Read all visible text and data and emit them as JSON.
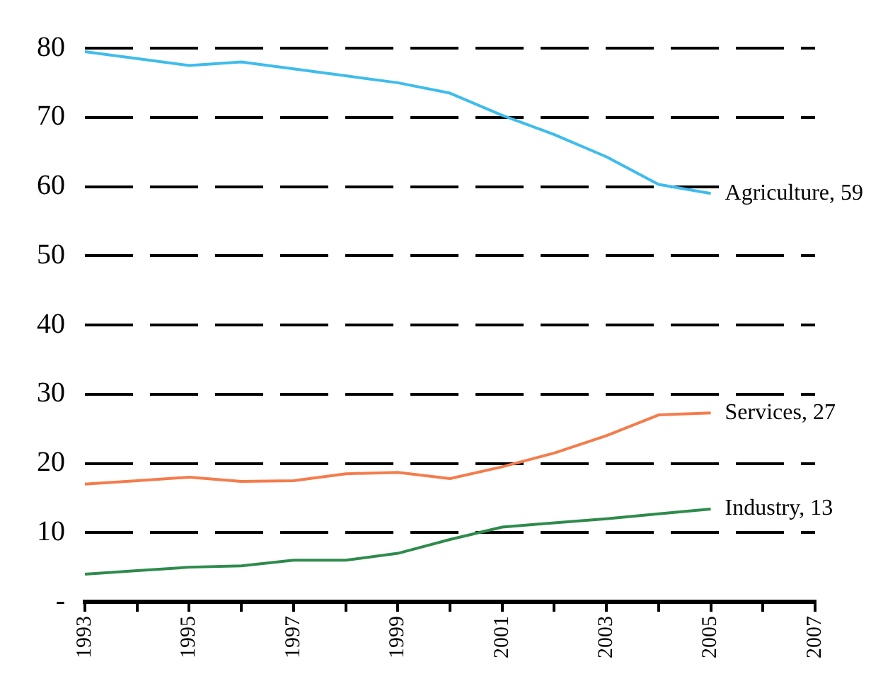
{
  "chart_data": {
    "type": "line",
    "x": [
      1993,
      1994,
      1995,
      1996,
      1997,
      1998,
      1999,
      2000,
      2001,
      2002,
      2003,
      2004,
      2005
    ],
    "series": [
      {
        "name": "Agriculture, 59",
        "color": "#3fbcec",
        "values": [
          79.5,
          78.5,
          77.5,
          78,
          77,
          76,
          75,
          73.5,
          70.3,
          67.5,
          64.3,
          60.3,
          59
        ]
      },
      {
        "name": "Services, 27",
        "color": "#f47c4c",
        "values": [
          17,
          17.5,
          18,
          17.4,
          17.5,
          18.5,
          18.7,
          17.8,
          19.5,
          21.5,
          24,
          27,
          27.3
        ]
      },
      {
        "name": "Industry, 13",
        "color": "#2e8b4c",
        "values": [
          4,
          4.5,
          5,
          5.2,
          6,
          6,
          7,
          9,
          10.8,
          11.4,
          12,
          12.7,
          13.4
        ]
      }
    ],
    "xlim": [
      1993,
      2007
    ],
    "xticks": [
      1993,
      {
        "value": 1994,
        "label": null
      },
      1995,
      {
        "value": 1996,
        "label": null
      },
      1997,
      {
        "value": 1998,
        "label": null
      },
      1999,
      {
        "value": 2000,
        "label": null
      },
      2001,
      {
        "value": 2002,
        "label": null
      },
      2003,
      {
        "value": 2004,
        "label": null
      },
      2005,
      {
        "value": 2006,
        "label": null
      },
      2007
    ],
    "ylim": [
      0,
      80
    ],
    "yticks": [
      {
        "value": 0,
        "label": "-"
      },
      10,
      20,
      30,
      40,
      50,
      60,
      70,
      80
    ],
    "grid": "y",
    "legend": false,
    "marker": "none",
    "line_style": "solid"
  }
}
